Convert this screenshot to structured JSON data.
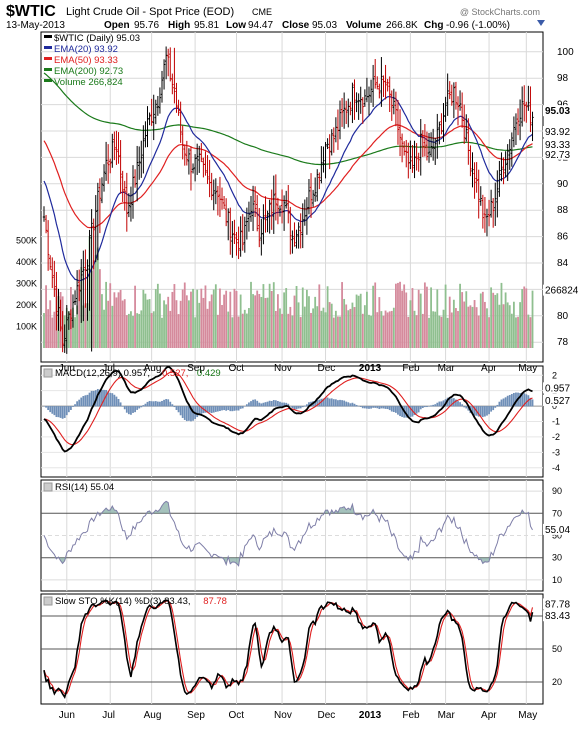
{
  "header": {
    "symbol": "$WTIC",
    "name": "Light Crude Oil - Spot Price (EOD)",
    "exchange": "CME",
    "date": "13-May-2013",
    "open_label": "Open",
    "open": "95.76",
    "high_label": "High",
    "high": "95.81",
    "low_label": "Low",
    "low": "94.47",
    "close_label": "Close",
    "close": "95.03",
    "volume_label": "Volume",
    "volume": "266.8K",
    "chg_label": "Chg",
    "chg": "-0.96 (-1.00%)",
    "watermark": "@ StockCharts.com"
  },
  "colors": {
    "price": "#000000",
    "ema20": "#1f2a9c",
    "ema50": "#e02020",
    "ema200": "#1a7a1a",
    "vol_up": "#8fbf8f",
    "vol_down": "#d58a9c",
    "macd_hist": "#6f8fb8",
    "rsi_line": "#7f7fa8",
    "sto_k": "#000000",
    "sto_d": "#e02020"
  },
  "chart_data": [
    {
      "type": "ohlc",
      "panel": "price",
      "legend": [
        {
          "label": "$WTIC (Daily) 95.03",
          "color": "#000000"
        },
        {
          "label": "EMA(20) 93.92",
          "color": "#1f2a9c"
        },
        {
          "label": "EMA(50) 93.33",
          "color": "#e02020"
        },
        {
          "label": "EMA(200) 92.73",
          "color": "#1a7a1a"
        },
        {
          "label": "Volume 266,824",
          "color": "#1a7a1a"
        }
      ],
      "x_labels": [
        "Jun",
        "Jul",
        "Aug",
        "Sep",
        "Oct",
        "Nov",
        "Dec",
        "2013",
        "Feb",
        "Mar",
        "Apr",
        "May"
      ],
      "y_ticks": [
        78,
        80,
        82,
        84,
        86,
        88,
        90,
        92,
        94,
        96,
        98,
        100
      ],
      "ylim": [
        76.5,
        101.5
      ],
      "volume_ticks": [
        "100K",
        "200K",
        "300K",
        "400K",
        "500K"
      ],
      "last_labels": {
        "close": "95.03",
        "ema20": "93.92",
        "ema50": "93.33",
        "ema200": "92.73",
        "volume": "266824"
      },
      "close_anchors": [
        [
          0,
          87.5
        ],
        [
          4,
          83.0
        ],
        [
          9,
          78.0
        ],
        [
          13,
          80.5
        ],
        [
          17,
          82.5
        ],
        [
          21,
          84.5
        ],
        [
          25,
          88.0
        ],
        [
          30,
          91.5
        ],
        [
          35,
          93.0
        ],
        [
          40,
          88.0
        ],
        [
          45,
          91.0
        ],
        [
          50,
          94.5
        ],
        [
          55,
          96.5
        ],
        [
          59,
          99.5
        ],
        [
          63,
          97.0
        ],
        [
          67,
          93.0
        ],
        [
          71,
          91.5
        ],
        [
          75,
          91.5
        ],
        [
          80,
          90.0
        ],
        [
          84,
          89.5
        ],
        [
          88,
          87.5
        ],
        [
          92,
          86.0
        ],
        [
          96,
          85.5
        ],
        [
          100,
          88.5
        ],
        [
          104,
          86.5
        ],
        [
          108,
          87.5
        ],
        [
          112,
          89.0
        ],
        [
          116,
          88.5
        ],
        [
          120,
          86.0
        ],
        [
          124,
          87.0
        ],
        [
          128,
          89.0
        ],
        [
          132,
          90.5
        ],
        [
          136,
          93.0
        ],
        [
          140,
          93.5
        ],
        [
          145,
          95.5
        ],
        [
          150,
          97.0
        ],
        [
          155,
          96.5
        ],
        [
          160,
          97.5
        ],
        [
          165,
          97.5
        ],
        [
          170,
          95.0
        ],
        [
          174,
          92.0
        ],
        [
          178,
          91.0
        ],
        [
          182,
          93.0
        ],
        [
          186,
          92.0
        ],
        [
          190,
          93.5
        ],
        [
          194,
          96.0
        ],
        [
          198,
          97.0
        ],
        [
          201,
          96.0
        ],
        [
          205,
          92.5
        ],
        [
          209,
          90.0
        ],
        [
          213,
          87.0
        ],
        [
          217,
          88.5
        ],
        [
          221,
          91.0
        ],
        [
          225,
          93.0
        ],
        [
          229,
          95.5
        ],
        [
          232,
          96.0
        ],
        [
          236,
          95.0
        ]
      ]
    },
    {
      "type": "line",
      "panel": "macd",
      "legend": [
        {
          "label": "MACD(12,26,9) 0.957,",
          "color": "#000000"
        },
        {
          "label": "0.527,",
          "color": "#e02020"
        },
        {
          "label": "0.429",
          "color": "#1a7a1a"
        }
      ],
      "y_ticks": [
        -4,
        -3,
        -2,
        -1,
        0,
        1,
        2
      ],
      "ylim": [
        -4.6,
        2.6
      ],
      "last_labels": {
        "macd": "0.957",
        "signal": "0.527"
      }
    },
    {
      "type": "line",
      "panel": "rsi",
      "legend": [
        {
          "label": "RSI(14) 55.04",
          "color": "#000000"
        }
      ],
      "y_ticks": [
        10,
        30,
        50,
        70,
        90
      ],
      "ylim": [
        0,
        100
      ],
      "last_labels": {
        "rsi": "55.04"
      }
    },
    {
      "type": "line",
      "panel": "stochastic",
      "legend": [
        {
          "label": "Slow STO %K(14) %D(3) 83.43,",
          "color": "#000000"
        },
        {
          "label": "87.78",
          "color": "#e02020"
        }
      ],
      "y_ticks": [
        20,
        50,
        80
      ],
      "ylim": [
        0,
        100
      ],
      "last_labels": {
        "k": "83.43",
        "d": "87.78"
      }
    }
  ]
}
